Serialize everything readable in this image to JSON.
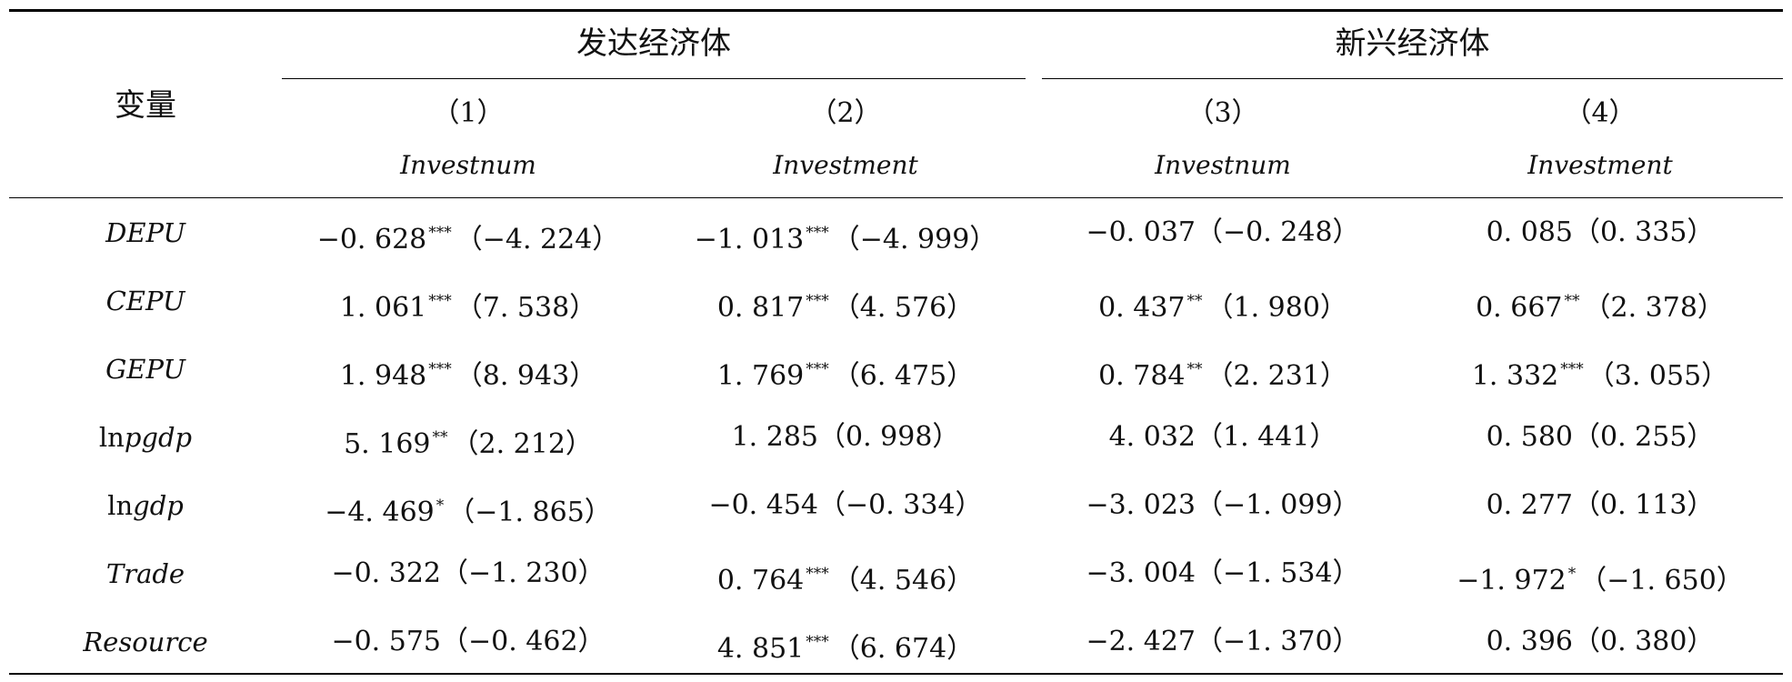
{
  "table": {
    "variable_header": "变量",
    "groups": [
      {
        "label": "发达经济体"
      },
      {
        "label": "新兴经济体"
      }
    ],
    "columns": [
      {
        "number": "（1）",
        "depvar": "Investnum"
      },
      {
        "number": "（2）",
        "depvar": "Investment"
      },
      {
        "number": "（3）",
        "depvar": "Investnum"
      },
      {
        "number": "（4）",
        "depvar": "Investment"
      }
    ],
    "rows": [
      {
        "prefix": "",
        "name": "DEPU",
        "cells": [
          {
            "coef": "−0. 628",
            "stars": "***",
            "t": "（−4. 224）"
          },
          {
            "coef": "−1. 013",
            "stars": "***",
            "t": "（−4. 999）"
          },
          {
            "coef": "−0. 037",
            "stars": "",
            "t": "（−0. 248）"
          },
          {
            "coef": "0. 085",
            "stars": "",
            "t": "（0. 335）"
          }
        ]
      },
      {
        "prefix": "",
        "name": "CEPU",
        "cells": [
          {
            "coef": "1. 061",
            "stars": "***",
            "t": "（7. 538）"
          },
          {
            "coef": "0. 817",
            "stars": "***",
            "t": "（4. 576）"
          },
          {
            "coef": "0. 437",
            "stars": "**",
            "t": "（1. 980）"
          },
          {
            "coef": "0. 667",
            "stars": "**",
            "t": "（2. 378）"
          }
        ]
      },
      {
        "prefix": "",
        "name": "GEPU",
        "cells": [
          {
            "coef": "1. 948",
            "stars": "***",
            "t": "（8. 943）"
          },
          {
            "coef": "1. 769",
            "stars": "***",
            "t": "（6. 475）"
          },
          {
            "coef": "0. 784",
            "stars": "**",
            "t": "（2. 231）"
          },
          {
            "coef": "1. 332",
            "stars": "***",
            "t": "（3. 055）"
          }
        ]
      },
      {
        "prefix": "ln",
        "name": "pgdp",
        "cells": [
          {
            "coef": "5. 169",
            "stars": "**",
            "t": "（2. 212）"
          },
          {
            "coef": "1. 285",
            "stars": "",
            "t": "（0. 998）"
          },
          {
            "coef": "4. 032",
            "stars": "",
            "t": "（1. 441）"
          },
          {
            "coef": "0. 580",
            "stars": "",
            "t": "（0. 255）"
          }
        ]
      },
      {
        "prefix": "ln",
        "name": "gdp",
        "cells": [
          {
            "coef": "−4. 469",
            "stars": "*",
            "t": "（−1. 865）"
          },
          {
            "coef": "−0. 454",
            "stars": "",
            "t": "（−0. 334）"
          },
          {
            "coef": "−3. 023",
            "stars": "",
            "t": "（−1. 099）"
          },
          {
            "coef": "0. 277",
            "stars": "",
            "t": "（0. 113）"
          }
        ]
      },
      {
        "prefix": "",
        "name": "Trade",
        "cells": [
          {
            "coef": "−0. 322",
            "stars": "",
            "t": "（−1. 230）"
          },
          {
            "coef": "0. 764",
            "stars": "***",
            "t": "（4. 546）"
          },
          {
            "coef": "−3. 004",
            "stars": "",
            "t": "（−1. 534）"
          },
          {
            "coef": "−1. 972",
            "stars": "*",
            "t": "（−1. 650）"
          }
        ]
      },
      {
        "prefix": "",
        "name": "Resource",
        "cells": [
          {
            "coef": "−0. 575",
            "stars": "",
            "t": "（−0. 462）"
          },
          {
            "coef": "4. 851",
            "stars": "***",
            "t": "（6. 674）"
          },
          {
            "coef": "−2. 427",
            "stars": "",
            "t": "（−1. 370）"
          },
          {
            "coef": "0. 396",
            "stars": "",
            "t": "（0. 380）"
          }
        ]
      }
    ]
  }
}
